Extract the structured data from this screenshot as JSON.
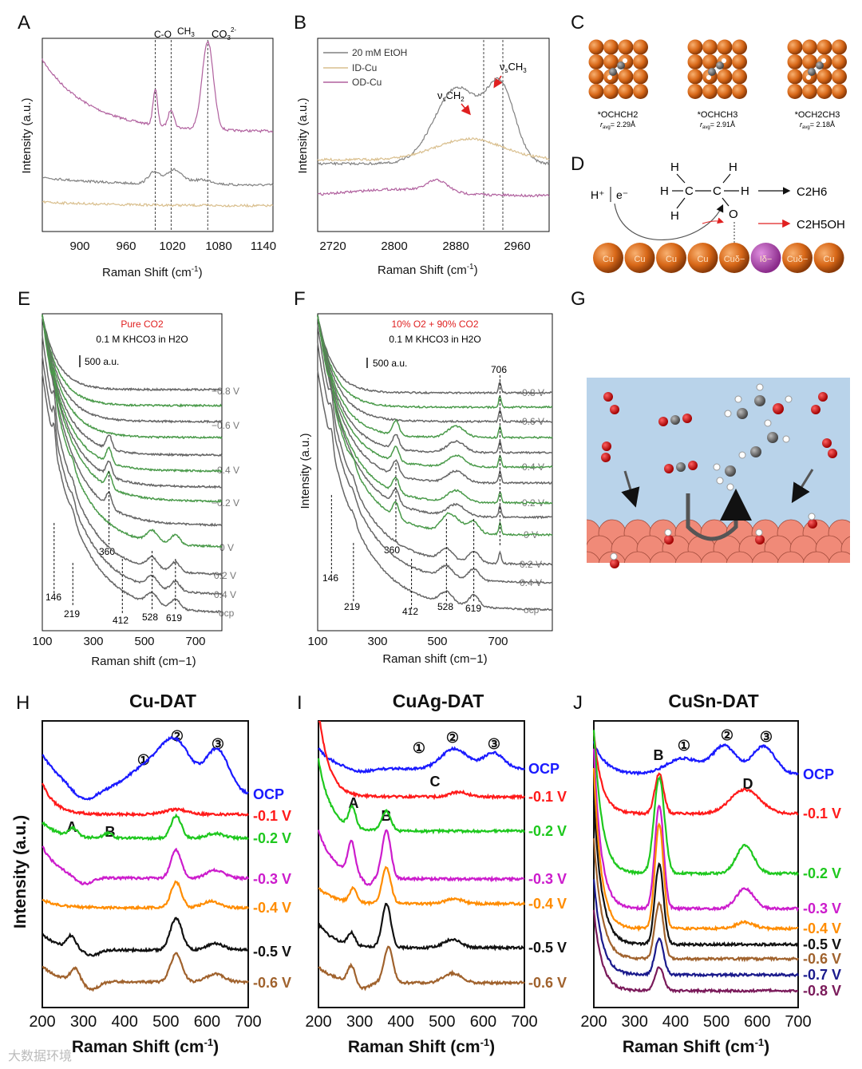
{
  "panel_letters": [
    "A",
    "B",
    "C",
    "D",
    "E",
    "F",
    "G",
    "H",
    "I",
    "J"
  ],
  "panel_a": {
    "ylabel": "Intensity (a.u.)",
    "xlabel": "Raman Shift (cm",
    "xlabel_sup": "-1",
    "xlabel_end": ")",
    "xticks": [
      "900",
      "960",
      "1020",
      "1080",
      "1140"
    ],
    "annotations": [
      "C-O",
      "CH",
      "3",
      "CO",
      "3",
      "2-"
    ]
  },
  "panel_b": {
    "ylabel": "Intensity (a.u.)",
    "xlabel": "Raman Shift (cm",
    "xlabel_sup": "-1",
    "xlabel_end": ")",
    "xticks": [
      "2720",
      "2800",
      "2880",
      "2960"
    ],
    "legend": [
      "20 mM EtOH",
      "ID-Cu",
      "OD-Cu"
    ],
    "annotations": [
      "ν",
      "s",
      "CH",
      "2",
      "ν",
      "s",
      "CH",
      "3"
    ]
  },
  "panel_c": {
    "structures": [
      {
        "label": "*OCHCH2",
        "r": "r",
        "sub": "avg",
        "value": "= 2.29Å"
      },
      {
        "label": "*OCHCH3",
        "r": "r",
        "sub": "avg",
        "value": "= 2.91Å"
      },
      {
        "label": "*OCH2CH3",
        "r": "r",
        "sub": "avg",
        "value": "= 2.18Å"
      }
    ]
  },
  "panel_d": {
    "reactant": "H⁺",
    "electron": "e⁻",
    "atoms": [
      "H",
      "H",
      "H",
      "C",
      "C",
      "H",
      "H",
      "O"
    ],
    "product1": "C2H6",
    "product2": "C2H5OH",
    "surface": [
      "Cu",
      "Cu",
      "Cu",
      "Cu",
      "Cuδ−",
      "Iδ−",
      "Cuδ−",
      "Cu"
    ]
  },
  "panel_e": {
    "gas": "Pure CO2",
    "electrolyte": "0.1 M KHCO3 in H2O",
    "scale": "500 a.u.",
    "xlabel": "Raman shift (cm−1)",
    "xticks": [
      "100",
      "300",
      "500",
      "700"
    ],
    "potentials": [
      "−0.8 V",
      "−0.6 V",
      "−0.4 V",
      "−0.2 V",
      "0 V",
      "0.2 V",
      "0.4 V",
      "ocp"
    ],
    "peaks": [
      "146",
      "219",
      "360",
      "412",
      "528",
      "619"
    ]
  },
  "panel_f": {
    "gas": "10% O2 + 90% CO2",
    "electrolyte": "0.1 M KHCO3 in H2O",
    "scale": "500 a.u.",
    "ylabel": "Intensity (a.u.)",
    "xlabel": "Raman shift (cm−1)",
    "xticks": [
      "100",
      "300",
      "500",
      "700"
    ],
    "potentials": [
      "−0.8 V",
      "−0.6 V",
      "−0.4 V",
      "−0.2 V",
      "0 V",
      "0.2 V",
      "0.4 V",
      "ocp"
    ],
    "peaks": [
      "146",
      "219",
      "360",
      "412",
      "528",
      "619",
      "706"
    ]
  },
  "chart_data": [
    {
      "panel": "A",
      "type": "line",
      "xlim": [
        860,
        1150
      ],
      "xlabel": "Raman Shift (cm-1)",
      "ylabel": "Intensity (a.u.)",
      "marked_peaks": [
        1002,
        1022,
        1068
      ],
      "series": [
        {
          "name": "OD-Cu",
          "color": "#b0609e",
          "decay": [
            90,
            60
          ],
          "peaks": [
            [
              1002,
              45,
              4
            ],
            [
              1022,
              22,
              5
            ],
            [
              1068,
              110,
              10
            ]
          ]
        },
        {
          "name": "ID-Cu",
          "color": "#808080",
          "decay": [
            10,
            80
          ],
          "peaks": [
            [
              1000,
              14,
              10
            ],
            [
              1025,
              18,
              14
            ],
            [
              1060,
              6,
              20
            ]
          ]
        },
        {
          "name": "20 mM EtOH",
          "color": "#d9bf8e",
          "decay": [
            5,
            100
          ],
          "peaks": []
        }
      ]
    },
    {
      "panel": "B",
      "type": "line",
      "xlim": [
        2700,
        2990
      ],
      "xlabel": "Raman Shift (cm-1)",
      "ylabel": "Intensity (a.u.)",
      "marked_peaks": [
        2908,
        2932
      ],
      "series": [
        {
          "name": "20 mM EtOH",
          "color": "#808080",
          "decay": [
            0,
            1
          ],
          "peaks": [
            [
              2875,
              95,
              40
            ],
            [
              2930,
              90,
              25
            ]
          ]
        },
        {
          "name": "ID-Cu",
          "color": "#d9bf8e",
          "decay": [
            0,
            1
          ],
          "peaks": [
            [
              2890,
              26,
              60
            ]
          ]
        },
        {
          "name": "OD-Cu",
          "color": "#b0609e",
          "decay": [
            0,
            1
          ],
          "peaks": [
            [
              2850,
              14,
              18
            ],
            [
              2800,
              8,
              80
            ]
          ]
        }
      ]
    },
    {
      "panel": "E",
      "type": "line",
      "xlim": [
        100,
        800
      ],
      "xlabel": "Raman shift (cm−1)",
      "series_count": 13,
      "peak_360_curves": [
        5,
        6,
        7,
        8
      ],
      "low_peaks": [
        146,
        219,
        412,
        528,
        619
      ]
    },
    {
      "panel": "F",
      "type": "line",
      "xlim": [
        100,
        880
      ],
      "xlabel": "Raman shift (cm−1)",
      "series_count": 13,
      "peak_706_curves": [
        0,
        1,
        2,
        3,
        4,
        5,
        6,
        7,
        8,
        9
      ]
    },
    {
      "panel": "H",
      "type": "line",
      "title": "Cu-DAT",
      "xlim": [
        200,
        700
      ],
      "xticks": [
        "200",
        "300",
        "400",
        "500",
        "600",
        "700"
      ],
      "xlabel": "Raman Shift (cm",
      "ylabel": "Intensity (a.u.)",
      "peak_labels": [
        "A",
        "B",
        "①",
        "②",
        "③"
      ],
      "series": [
        {
          "name": "OCP",
          "color": "#1a1aff",
          "decay": [
            50,
            60
          ],
          "peaks": [
            [
              525,
              60,
              55
            ],
            [
              625,
              55,
              40
            ],
            [
              450,
              30,
              70
            ],
            [
              300,
              -15,
              40
            ]
          ]
        },
        {
          "name": "-0.1 V",
          "color": "#ff1a1a",
          "decay": [
            40,
            30
          ],
          "peaks": [
            [
              525,
              6,
              40
            ]
          ]
        },
        {
          "name": "-0.2 V",
          "color": "#1ec81e",
          "decay": [
            20,
            40
          ],
          "peaks": [
            [
              525,
              28,
              18
            ],
            [
              275,
              10,
              15
            ],
            [
              360,
              6,
              15
            ],
            [
              620,
              6,
              30
            ]
          ]
        },
        {
          "name": "-0.3 V",
          "color": "#cc1ccc",
          "decay": [
            40,
            40
          ],
          "peaks": [
            [
              525,
              35,
              18
            ],
            [
              620,
              10,
              30
            ],
            [
              300,
              -10,
              30
            ]
          ]
        },
        {
          "name": "-0.4 V",
          "color": "#ff8c00",
          "decay": [
            10,
            40
          ],
          "peaks": [
            [
              525,
              32,
              18
            ],
            [
              610,
              8,
              30
            ]
          ]
        },
        {
          "name": "-0.5 V",
          "color": "#111111",
          "decay": [
            20,
            40
          ],
          "peaks": [
            [
              525,
              40,
              20
            ],
            [
              270,
              15,
              15
            ],
            [
              620,
              8,
              30
            ],
            [
              320,
              -8,
              25
            ]
          ]
        },
        {
          "name": "-0.6 V",
          "color": "#a0622d",
          "decay": [
            20,
            40
          ],
          "peaks": [
            [
              525,
              35,
              20
            ],
            [
              280,
              15,
              15
            ],
            [
              620,
              10,
              30
            ],
            [
              320,
              -10,
              25
            ]
          ]
        }
      ]
    },
    {
      "panel": "I",
      "type": "line",
      "title": "CuAg-DAT",
      "xlim": [
        200,
        700
      ],
      "xticks": [
        "200",
        "300",
        "400",
        "500",
        "600",
        "700"
      ],
      "xlabel": "Raman Shift (cm",
      "peak_labels": [
        "①",
        "②",
        "③",
        "A",
        "B",
        "C"
      ],
      "series": [
        {
          "name": "OCP",
          "color": "#1a1aff",
          "decay": [
            25,
            40
          ],
          "peaks": [
            [
              530,
              25,
              45
            ],
            [
              625,
              20,
              35
            ],
            [
              300,
              -5,
              40
            ]
          ]
        },
        {
          "name": "-0.1 V",
          "color": "#ff1a1a",
          "decay": [
            110,
            25
          ],
          "peaks": [
            [
              540,
              6,
              30
            ]
          ]
        },
        {
          "name": "-0.2 V",
          "color": "#1ec81e",
          "decay": [
            90,
            30
          ],
          "peaks": [
            [
              282,
              25,
              12
            ],
            [
              365,
              25,
              15
            ]
          ]
        },
        {
          "name": "-0.3 V",
          "color": "#cc1ccc",
          "decay": [
            60,
            40
          ],
          "peaks": [
            [
              280,
              40,
              12
            ],
            [
              365,
              60,
              15
            ],
            [
              320,
              -10,
              15
            ]
          ]
        },
        {
          "name": "-0.4 V",
          "color": "#ff8c00",
          "decay": [
            20,
            40
          ],
          "peaks": [
            [
              285,
              18,
              12
            ],
            [
              365,
              45,
              15
            ],
            [
              530,
              6,
              30
            ]
          ]
        },
        {
          "name": "-0.5 V",
          "color": "#111111",
          "decay": [
            30,
            40
          ],
          "peaks": [
            [
              280,
              15,
              12
            ],
            [
              365,
              55,
              15
            ],
            [
              525,
              10,
              30
            ]
          ]
        },
        {
          "name": "-0.6 V",
          "color": "#a0622d",
          "decay": [
            20,
            40
          ],
          "peaks": [
            [
              280,
              20,
              12
            ],
            [
              370,
              45,
              15
            ],
            [
              525,
              12,
              30
            ],
            [
              310,
              -8,
              20
            ]
          ]
        }
      ]
    },
    {
      "panel": "J",
      "type": "line",
      "title": "CuSn-DAT",
      "xlim": [
        200,
        700
      ],
      "xticks": [
        "200",
        "300",
        "400",
        "500",
        "600",
        "700"
      ],
      "xlabel": "Raman Shift (cm",
      "peak_labels": [
        "B",
        "①",
        "②",
        "③",
        "D"
      ],
      "series": [
        {
          "name": "OCP",
          "color": "#1a1aff",
          "decay": [
            40,
            30
          ],
          "peaks": [
            [
              520,
              35,
              40
            ],
            [
              615,
              35,
              40
            ],
            [
              420,
              20,
              60
            ]
          ]
        },
        {
          "name": "-0.1 V",
          "color": "#ff1a1a",
          "decay": [
            100,
            20
          ],
          "peaks": [
            [
              360,
              50,
              15
            ],
            [
              570,
              30,
              50
            ]
          ]
        },
        {
          "name": "-0.2 V",
          "color": "#1ec81e",
          "decay": [
            180,
            20
          ],
          "peaks": [
            [
              360,
              120,
              18
            ],
            [
              570,
              35,
              30
            ]
          ]
        },
        {
          "name": "-0.3 V",
          "color": "#cc1ccc",
          "decay": [
            200,
            18
          ],
          "peaks": [
            [
              360,
              130,
              15
            ],
            [
              570,
              25,
              30
            ]
          ]
        },
        {
          "name": "-0.4 V",
          "color": "#ff8c00",
          "decay": [
            200,
            18
          ],
          "peaks": [
            [
              360,
              130,
              15
            ],
            [
              570,
              8,
              30
            ]
          ]
        },
        {
          "name": "-0.5 V",
          "color": "#111111",
          "decay": [
            180,
            20
          ],
          "peaks": [
            [
              360,
              100,
              15
            ]
          ]
        },
        {
          "name": "-0.6 V",
          "color": "#a0622d",
          "decay": [
            150,
            20
          ],
          "peaks": [
            [
              360,
              70,
              15
            ]
          ]
        },
        {
          "name": "-0.7 V",
          "color": "#1a1a8c",
          "decay": [
            120,
            20
          ],
          "peaks": [
            [
              360,
              45,
              15
            ]
          ]
        },
        {
          "name": "-0.8 V",
          "color": "#7a1a5a",
          "decay": [
            100,
            20
          ],
          "peaks": [
            [
              360,
              30,
              15
            ]
          ]
        }
      ]
    }
  ],
  "watermark": "大数据环境"
}
